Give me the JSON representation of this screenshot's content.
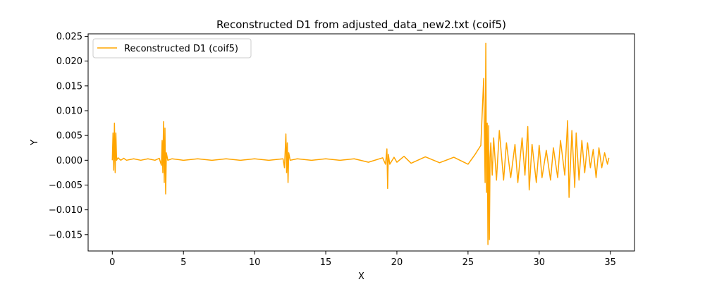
{
  "chart_data": {
    "type": "line",
    "title": "Reconstructed D1 from adjusted_data_new2.txt (coif5)",
    "xlabel": "X",
    "ylabel": "Y",
    "xlim": [
      -1.7,
      36.7
    ],
    "ylim": [
      -0.0183,
      0.0255
    ],
    "xticks": [
      0,
      5,
      10,
      15,
      20,
      25,
      30,
      35
    ],
    "xtick_labels": [
      "0",
      "5",
      "10",
      "15",
      "20",
      "25",
      "30",
      "35"
    ],
    "yticks": [
      -0.015,
      -0.01,
      -0.005,
      0.0,
      0.005,
      0.01,
      0.015,
      0.02,
      0.025
    ],
    "ytick_labels": [
      "−0.015",
      "−0.010",
      "−0.005",
      "0.000",
      "0.005",
      "0.010",
      "0.015",
      "0.020",
      "0.025"
    ],
    "grid": false,
    "legend_position": "top-left",
    "series": [
      {
        "name": "Reconstructed D1 (coif5)",
        "color": "#ffa500",
        "x": [
          0.0,
          0.05,
          0.1,
          0.15,
          0.2,
          0.25,
          0.3,
          0.4,
          0.6,
          0.8,
          1.0,
          1.5,
          2.0,
          2.5,
          3.0,
          3.3,
          3.45,
          3.5,
          3.55,
          3.6,
          3.65,
          3.7,
          3.75,
          3.8,
          3.9,
          4.2,
          5.0,
          6.0,
          7.0,
          8.0,
          9.0,
          10.0,
          11.0,
          12.0,
          12.1,
          12.2,
          12.25,
          12.3,
          12.35,
          12.4,
          12.5,
          13.0,
          14.0,
          15.0,
          16.0,
          17.0,
          18.0,
          19.0,
          19.2,
          19.3,
          19.35,
          19.4,
          19.5,
          19.8,
          20.0,
          20.5,
          21.0,
          22.0,
          23.0,
          24.0,
          25.0,
          25.5,
          25.9,
          26.1,
          26.2,
          26.25,
          26.3,
          26.35,
          26.4,
          26.45,
          26.5,
          26.55,
          26.6,
          26.7,
          26.8,
          27.0,
          27.2,
          27.5,
          27.7,
          28.0,
          28.3,
          28.5,
          28.8,
          29.0,
          29.2,
          29.3,
          29.5,
          29.8,
          30.0,
          30.2,
          30.5,
          30.8,
          31.0,
          31.3,
          31.5,
          31.8,
          32.0,
          32.1,
          32.3,
          32.5,
          32.6,
          32.8,
          33.0,
          33.2,
          33.4,
          33.6,
          33.8,
          34.0,
          34.2,
          34.4,
          34.6,
          34.8,
          34.9
        ],
        "y": [
          0.0,
          0.0055,
          -0.002,
          0.0075,
          -0.0025,
          0.0055,
          0.0,
          0.0005,
          0.0,
          0.0004,
          0.0,
          0.0003,
          0.0,
          0.0003,
          0.0,
          0.0004,
          -0.001,
          0.004,
          -0.0025,
          0.0078,
          -0.0045,
          0.0065,
          -0.0068,
          0.0015,
          0.0,
          0.0003,
          0.0,
          0.0003,
          0.0,
          0.0003,
          0.0,
          0.0003,
          0.0,
          0.0003,
          -0.0015,
          0.0053,
          -0.0025,
          0.0035,
          -0.0045,
          0.0015,
          0.0,
          0.0003,
          0.0,
          0.0003,
          0.0,
          0.0003,
          -0.0004,
          0.0005,
          -0.0008,
          0.0023,
          -0.0057,
          0.0012,
          -0.0008,
          0.0006,
          -0.0004,
          0.0008,
          -0.0006,
          0.0007,
          -0.0005,
          0.0006,
          -0.0008,
          0.0012,
          0.003,
          0.0165,
          -0.0045,
          0.0236,
          -0.0065,
          0.0075,
          -0.017,
          0.007,
          -0.016,
          0.0005,
          0.0035,
          -0.003,
          0.0045,
          -0.004,
          0.006,
          -0.004,
          0.0035,
          -0.0035,
          0.0032,
          -0.0045,
          0.0045,
          -0.003,
          0.0068,
          -0.006,
          0.0032,
          -0.0045,
          0.003,
          -0.0035,
          0.002,
          -0.004,
          0.0025,
          -0.0035,
          0.004,
          -0.003,
          0.008,
          -0.0075,
          0.006,
          -0.0055,
          0.0055,
          -0.004,
          0.004,
          -0.0025,
          0.0035,
          -0.0015,
          0.0022,
          -0.0035,
          0.0025,
          -0.0015,
          0.0015,
          -0.0008,
          0.0005
        ]
      }
    ]
  }
}
